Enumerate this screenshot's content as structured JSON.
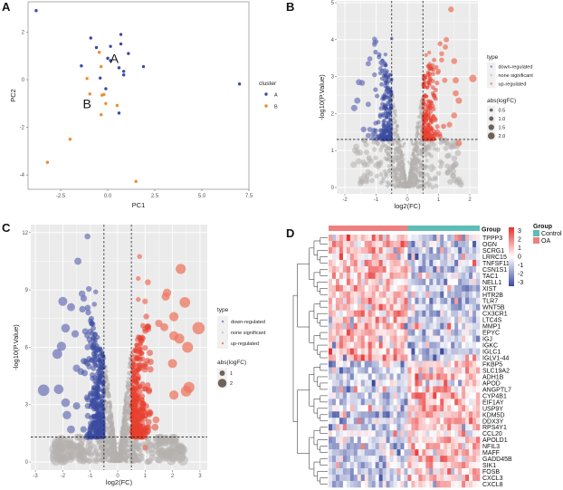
{
  "chart_data": [
    {
      "panel": "A",
      "type": "scatter",
      "title": "",
      "xlabel": "PC1",
      "ylabel": "PC2",
      "xlim": [
        -4.2,
        7.5
      ],
      "ylim": [
        -4.6,
        3.2
      ],
      "xticks": [
        "-2.5",
        "0.0",
        "2.5",
        "5.0",
        "7.5"
      ],
      "xtick_values": [
        -2.5,
        0,
        2.5,
        5,
        7.5
      ],
      "yticks": [
        "-4",
        "-2",
        "0",
        "2"
      ],
      "ytick_values": [
        -4,
        -2,
        0,
        2
      ],
      "legend": {
        "title": "cluster",
        "position": "right",
        "entries": [
          {
            "label": "A",
            "color": "#3B4BA0"
          },
          {
            "label": "B",
            "color": "#F08A2C"
          }
        ]
      },
      "annotations": [
        {
          "text": "A",
          "x": 0.35,
          "y": 0.7
        },
        {
          "text": "B",
          "x": -1.1,
          "y": -1.2
        }
      ],
      "series": [
        {
          "name": "A",
          "points": [
            [
              -3.8,
              2.9
            ],
            [
              -0.9,
              1.75
            ],
            [
              0.7,
              1.9
            ],
            [
              -0.6,
              1.35
            ],
            [
              0.15,
              1.4
            ],
            [
              0.7,
              1.5
            ],
            [
              1.1,
              1.1
            ],
            [
              0.0,
              0.9
            ],
            [
              0.15,
              0.8
            ],
            [
              0.6,
              0.5
            ],
            [
              -1.4,
              0.58
            ],
            [
              0.85,
              0.35
            ],
            [
              0.85,
              0.2
            ],
            [
              1.9,
              0.55
            ],
            [
              -0.4,
              0.07
            ],
            [
              -0.1,
              -0.38
            ],
            [
              0.6,
              -1.4
            ],
            [
              7.0,
              -0.18
            ]
          ]
        },
        {
          "name": "B",
          "points": [
            [
              -0.45,
              1.15
            ],
            [
              -0.35,
              0.55
            ],
            [
              -1.1,
              0.05
            ],
            [
              -0.95,
              -0.6
            ],
            [
              -0.3,
              -0.65
            ],
            [
              -0.2,
              -0.62
            ],
            [
              -0.1,
              -1.0
            ],
            [
              0.5,
              -1.08
            ],
            [
              -0.35,
              -1.47
            ],
            [
              -2.0,
              -2.5
            ],
            [
              -3.2,
              -3.47
            ],
            [
              1.5,
              -4.27
            ]
          ]
        }
      ]
    },
    {
      "panel": "B",
      "type": "scatter",
      "subtype": "volcano",
      "xlabel": "log2(FC)",
      "ylabel": "-log10(P.Value)",
      "xlim": [
        -2.3,
        2.3
      ],
      "ylim": [
        -0.2,
        5.05
      ],
      "xticks": [
        "-2",
        "-1",
        "0",
        "1",
        "2"
      ],
      "xtick_values": [
        -2,
        -1,
        0,
        1,
        2
      ],
      "yticks": [
        "0",
        "1",
        "2",
        "3",
        "4",
        "5"
      ],
      "ytick_values": [
        0,
        1,
        2,
        3,
        4,
        5
      ],
      "thresholds": {
        "logFC": 0.5,
        "pvalue_line": 1.3
      },
      "legend": {
        "type_title": "type",
        "type_entries": [
          {
            "label": "down-regulated",
            "color": "#3B4BA0"
          },
          {
            "label": "none significant",
            "color": "#B5B1AE"
          },
          {
            "label": "up-regulated",
            "color": "#E8402F"
          }
        ],
        "size_title": "abs(logFC)",
        "size_entries": [
          "0.5",
          "1.0",
          "1.5",
          "2.0"
        ],
        "size_values": [
          0.5,
          1.0,
          1.5,
          2.0
        ]
      },
      "highlight_points": {
        "down": [
          [
            -1.05,
            4.02
          ],
          [
            -1.0,
            3.95
          ],
          [
            -1.05,
            3.87
          ],
          [
            -0.5,
            4.03
          ],
          [
            -1.2,
            3.48
          ],
          [
            -1.25,
            3.35
          ],
          [
            -0.7,
            3.6
          ],
          [
            -0.85,
            3.38
          ],
          [
            -0.75,
            3.38
          ],
          [
            -0.8,
            3.32
          ],
          [
            -1.05,
            3.05
          ],
          [
            -1.55,
            2.85
          ],
          [
            -1.45,
            2.83
          ],
          [
            -1.6,
            2.35
          ],
          [
            -1.7,
            2.15
          ],
          [
            -1.25,
            2.25
          ],
          [
            -1.4,
            1.57
          ],
          [
            -1.2,
            1.57
          ],
          [
            -1.1,
            1.45
          ],
          [
            -1.25,
            1.4
          ]
        ],
        "up": [
          [
            1.4,
            4.82
          ],
          [
            1.25,
            4.0
          ],
          [
            1.22,
            3.8
          ],
          [
            1.1,
            3.62
          ],
          [
            1.1,
            3.45
          ],
          [
            1.5,
            3.42
          ],
          [
            0.7,
            3.65
          ],
          [
            0.6,
            3.58
          ],
          [
            2.1,
            2.95
          ],
          [
            1.55,
            2.9
          ],
          [
            1.2,
            2.9
          ],
          [
            1.55,
            2.55
          ],
          [
            1.65,
            2.35
          ],
          [
            1.5,
            1.95
          ],
          [
            1.35,
            1.7
          ],
          [
            1.65,
            1.2
          ],
          [
            1.0,
            3.15
          ]
        ]
      }
    },
    {
      "panel": "C",
      "type": "scatter",
      "subtype": "volcano",
      "xlabel": "log2(FC)",
      "ylabel": "-log10(P.Value)",
      "xlim": [
        -3.2,
        3.2
      ],
      "ylim": [
        -0.4,
        12.4
      ],
      "xticks": [
        "-3",
        "-2",
        "-1",
        "0",
        "1",
        "2",
        "3"
      ],
      "xtick_values": [
        -3,
        -2,
        -1,
        0,
        1,
        2,
        3
      ],
      "yticks": [
        "0",
        "3",
        "6",
        "9",
        "12"
      ],
      "ytick_values": [
        0,
        3,
        6,
        9,
        12
      ],
      "thresholds": {
        "logFC": 0.5,
        "pvalue_line": 1.3
      },
      "legend": {
        "type_title": "type",
        "type_entries": [
          {
            "label": "down-regulated",
            "color": "#3B4BA0"
          },
          {
            "label": "none significant",
            "color": "#B5B1AE"
          },
          {
            "label": "up-regulated",
            "color": "#E8402F"
          }
        ],
        "size_title": "abs(logFC)",
        "size_entries": [
          "1",
          "2"
        ],
        "size_values": [
          1,
          2
        ]
      },
      "highlight_points": {
        "down": [
          [
            -1.1,
            11.8
          ],
          [
            -1.45,
            10.5
          ],
          [
            -1.05,
            9.05
          ],
          [
            -1.3,
            8.8
          ],
          [
            -0.8,
            8.9
          ],
          [
            -2.0,
            8.4
          ],
          [
            -1.7,
            8.1
          ],
          [
            -0.85,
            8.25
          ],
          [
            -1.9,
            7.0
          ],
          [
            -1.55,
            6.7
          ],
          [
            -2.05,
            6.05
          ],
          [
            -2.2,
            5.65
          ],
          [
            -2.7,
            3.75
          ],
          [
            -2.15,
            3.8
          ],
          [
            -1.9,
            3.1
          ],
          [
            -1.85,
            2.45
          ],
          [
            -1.7,
            1.7
          ],
          [
            -1.5,
            4.9
          ],
          [
            -1.1,
            6.0
          ]
        ],
        "up": [
          [
            0.8,
            10.75
          ],
          [
            2.3,
            10.1
          ],
          [
            0.75,
            9.6
          ],
          [
            1.1,
            9.4
          ],
          [
            1.8,
            8.85
          ],
          [
            1.75,
            8.65
          ],
          [
            2.45,
            8.35
          ],
          [
            0.75,
            8.5
          ],
          [
            1.0,
            8.4
          ],
          [
            2.05,
            7.6
          ],
          [
            2.95,
            7.0
          ],
          [
            1.5,
            7.25
          ],
          [
            1.7,
            7.05
          ],
          [
            2.05,
            6.6
          ],
          [
            2.25,
            6.45
          ],
          [
            2.55,
            6.0
          ],
          [
            2.0,
            5.15
          ],
          [
            2.6,
            3.9
          ],
          [
            2.5,
            3.7
          ],
          [
            2.05,
            3.5
          ],
          [
            1.4,
            2.2
          ],
          [
            1.0,
            0.75
          ]
        ]
      }
    },
    {
      "panel": "D",
      "type": "heatmap",
      "annotation_title": "Group",
      "groups": [
        {
          "label": "OA",
          "color": "#F08080",
          "columns": 22
        },
        {
          "label": "Control",
          "color": "#5EBDB5",
          "columns": 20
        }
      ],
      "legend": {
        "group_title": "Group",
        "group_entries": [
          {
            "label": "Control",
            "color": "#5EBDB5"
          },
          {
            "label": "OA",
            "color": "#F08080"
          }
        ],
        "scale_ticks": [
          "3",
          "2",
          "1",
          "0",
          "-1",
          "-2",
          "-3"
        ],
        "scale_range": [
          -3,
          3
        ],
        "scale_colors": {
          "low": "#3B4BA0",
          "mid": "#FFFFFF",
          "high": "#E8302F"
        }
      },
      "genes": [
        "TPPP3",
        "OGN",
        "SCRG1",
        "LRRC15",
        "TNFSF11",
        "CSN1S1",
        "TAC1",
        "NELL1",
        "XIST",
        "HTR2B",
        "TLR7",
        "WNT5B",
        "CX3CR1",
        "LTC4S",
        "MMP1",
        "EPYC",
        "IGJ",
        "IGKC",
        "IGLC1",
        "IGLV1-44",
        "FKBP5",
        "SLC19A2",
        "ADH1B",
        "APOD",
        "ANGPTL7",
        "CYP4B1",
        "EIF1AY",
        "USP9Y",
        "KDM5D",
        "DDX3Y",
        "RPS4Y1",
        "CCL20",
        "APOLD1",
        "NFIL3",
        "MAFF",
        "GADD45B",
        "SIK1",
        "FOSB",
        "CXCL3",
        "CXCL8"
      ],
      "row_pattern": {
        "up_in_OA_rows": [
          0,
          19
        ],
        "down_in_OA_rows": [
          20,
          39
        ],
        "description": "Rows TPPP3–IGLV1-44 high (red) in OA, low (blue) in Control; rows FKBP5–CXCL8 low in OA, high in Control"
      }
    }
  ],
  "panels": {
    "A": {
      "letter": "A",
      "legend_title": "cluster",
      "legend_labels": [
        "A",
        "B"
      ],
      "xlabel": "PC1",
      "ylabel": "PC2",
      "label_a": "A",
      "label_b": "B"
    },
    "B": {
      "letter": "B"
    },
    "C": {
      "letter": "C"
    },
    "D": {
      "letter": "D",
      "group_label": "Group"
    }
  }
}
